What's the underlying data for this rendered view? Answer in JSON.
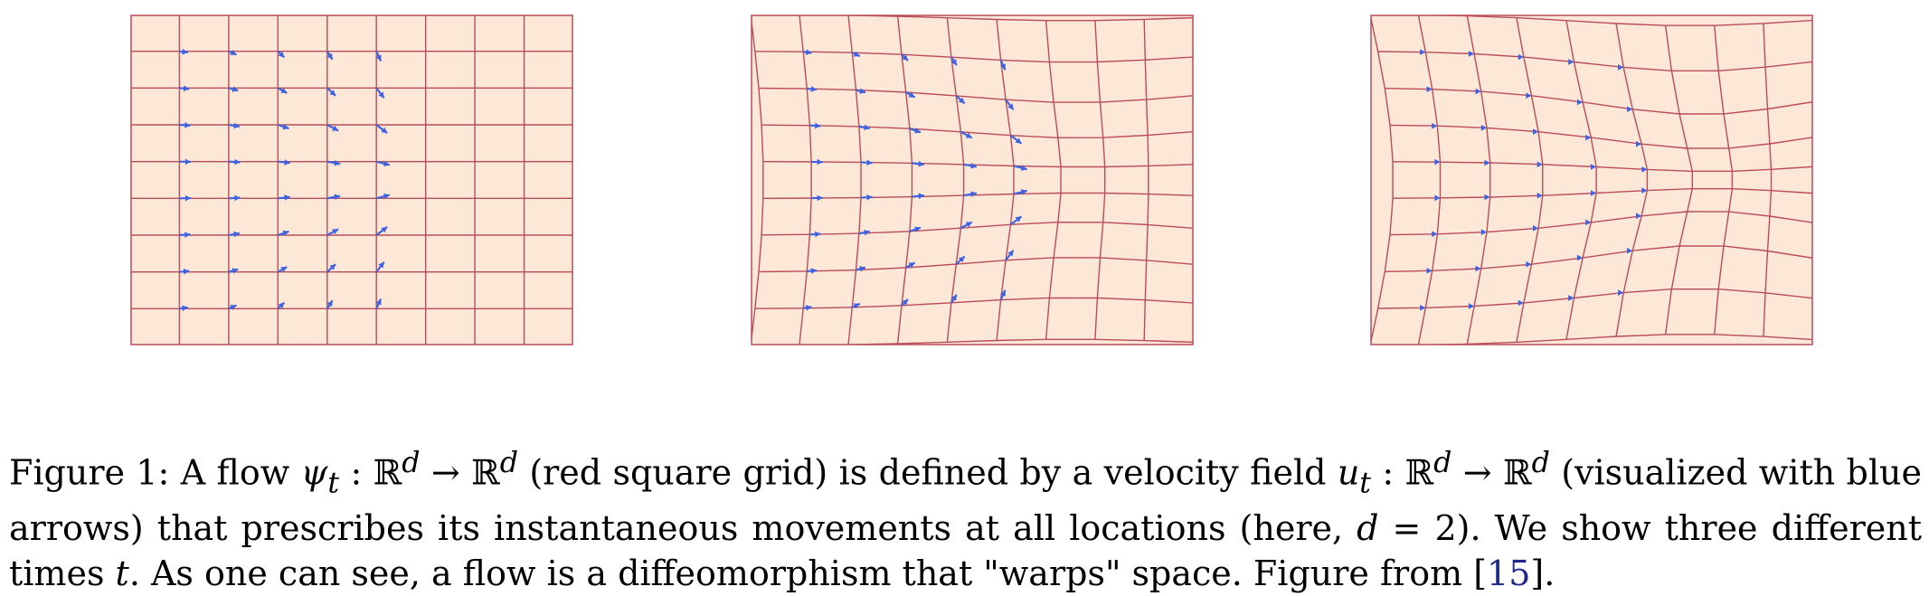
{
  "colors": {
    "panel_fill": "#fde8d8",
    "grid_line": "#b94c5a",
    "arrow": "#3f63e0",
    "reference_link": "#1f2a8a"
  },
  "figure": {
    "panels": [
      {
        "name": "flow-at-time-1"
      },
      {
        "name": "flow-at-time-2"
      },
      {
        "name": "flow-at-time-3"
      }
    ],
    "caption": {
      "label": "Figure 1:",
      "p1": " A flow ",
      "psi_t": "ψ",
      "sub_t": "t",
      "map1": " : ℝ",
      "sup_d1": "d",
      "arrow1": " → ℝ",
      "sup_d2": "d",
      "p2": " (red square grid) is defined by a velocity field ",
      "u_t": "u",
      "sub_t2": "t",
      "map2": " : ℝ",
      "sup_d3": "d",
      "arrow2": " → ℝ",
      "sup_d4": "d",
      "p3": " (visualized with blue arrows) that prescribes its instantaneous movements at all locations (here, ",
      "d_eq": "d",
      "eq_val": " = 2). We show three different times ",
      "t_var": "t",
      "p4": ". As one can see, a flow is a diffeomorphism that \"warps\" space. Figure from [",
      "ref": "15",
      "p5": "]."
    }
  }
}
